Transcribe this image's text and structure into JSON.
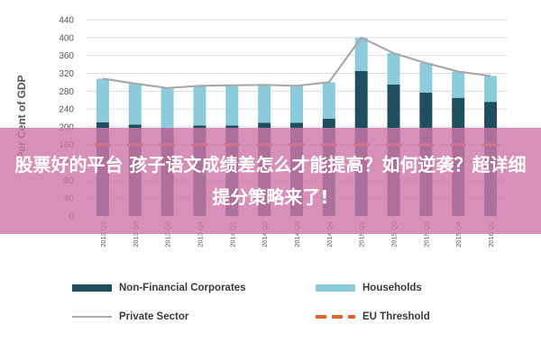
{
  "chart_data": {
    "type": "bar",
    "stacked": true,
    "ylabel": "Per Cent of GDP",
    "ylim": [
      0,
      440
    ],
    "yticks": [
      0,
      40,
      80,
      120,
      160,
      200,
      240,
      280,
      320,
      360,
      400,
      440
    ],
    "grid": true,
    "legend_position": "bottom",
    "categories": [
      "2013 Q1",
      "2013 Q2",
      "2013 Q3",
      "2013 Q4",
      "2014 Q1",
      "2014 Q2",
      "2014 Q3",
      "2014 Q4",
      "2015 Q1",
      "2015 Q2",
      "2015 Q3",
      "2015 Q4",
      "2016 Q1"
    ],
    "series": [
      {
        "name": "Non-Financial Corporates",
        "kind": "bar",
        "color": "#1f4e5f",
        "values": [
          210,
          205,
          197,
          203,
          203,
          209,
          209,
          218,
          325,
          295,
          277,
          265,
          256
        ]
      },
      {
        "name": "Households",
        "kind": "bar",
        "color": "#8ccbdc",
        "values": [
          98,
          92,
          90,
          89,
          90,
          85,
          83,
          82,
          75,
          70,
          66,
          59,
          58
        ]
      },
      {
        "name": "Private Sector",
        "kind": "line",
        "color": "#a8a8a8",
        "values": [
          308,
          297,
          287,
          292,
          293,
          294,
          292,
          300,
          400,
          365,
          343,
          324,
          314
        ]
      },
      {
        "name": "EU Threshold",
        "kind": "dashed",
        "color": "#e8612c",
        "values": [
          160,
          160,
          160,
          160,
          160,
          160,
          160,
          160,
          160,
          160,
          160,
          160,
          160
        ]
      }
    ]
  },
  "legend": {
    "corporates": "Non-Financial Corporates",
    "households": "Households",
    "private": "Private Sector",
    "threshold": "EU Threshold"
  },
  "colors": {
    "corporates": "#1f4e5f",
    "households": "#8ccbdc",
    "private": "#a8a8a8",
    "threshold": "#e8612c",
    "banner": "#ce78a8"
  },
  "banner": {
    "text": "股票好的平台 孩子语文成绩差怎么才能提高？如何逆袭？超详细提分策略来了!"
  }
}
